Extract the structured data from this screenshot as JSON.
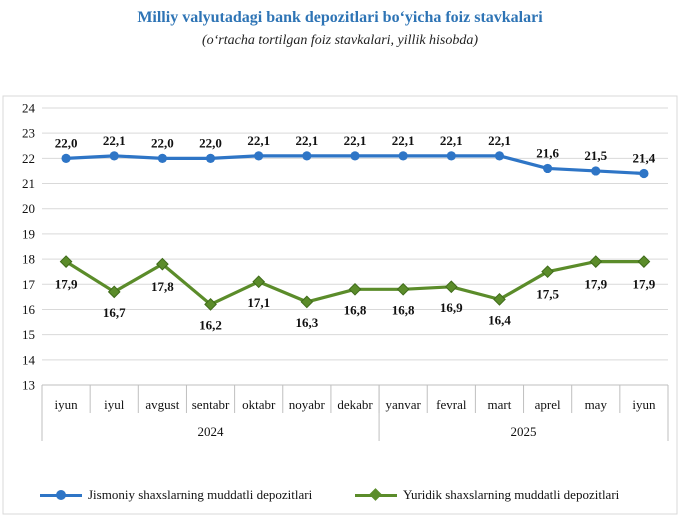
{
  "chart_data": {
    "type": "line",
    "title": "Milliy valyutadagi bank depozitlari bo‘yicha foiz stavkalari",
    "subtitle": "(o‘rtacha tortilgan foiz stavkalari, yillik hisobda)",
    "categories": [
      "iyun",
      "iyul",
      "avgust",
      "sentabr",
      "oktabr",
      "noyabr",
      "dekabr",
      "yanvar",
      "fevral",
      "mart",
      "aprel",
      "may",
      "iyun"
    ],
    "year_groups": [
      {
        "label": "2024",
        "count": 7
      },
      {
        "label": "2025",
        "count": 6
      }
    ],
    "series": [
      {
        "name": "Jismoniy shaxslarning muddatli depozitlari",
        "color": "#2e75c6",
        "marker": "circle",
        "values": [
          22.0,
          22.1,
          22.0,
          22.0,
          22.1,
          22.1,
          22.1,
          22.1,
          22.1,
          22.1,
          21.6,
          21.5,
          21.4
        ],
        "labels": [
          "22,0",
          "22,1",
          "22,0",
          "22,0",
          "22,1",
          "22,1",
          "22,1",
          "22,1",
          "22,1",
          "22,1",
          "21,6",
          "21,5",
          "21,4"
        ]
      },
      {
        "name": "Yuridik shaxslarning muddatli depozitlari",
        "color": "#5b8c2a",
        "marker": "diamond",
        "values": [
          17.9,
          16.7,
          17.8,
          16.2,
          17.1,
          16.3,
          16.8,
          16.8,
          16.9,
          16.4,
          17.5,
          17.9,
          17.9
        ],
        "labels": [
          "17,9",
          "16,7",
          "17,8",
          "16,2",
          "17,1",
          "16,3",
          "16,8",
          "16,8",
          "16,9",
          "16,4",
          "17,5",
          "17,9",
          "17,9"
        ]
      }
    ],
    "ylim": [
      13,
      24
    ],
    "yticks": [
      "13",
      "14",
      "15",
      "16",
      "17",
      "18",
      "19",
      "20",
      "21",
      "22",
      "23",
      "24"
    ],
    "grid": true,
    "legend_position": "bottom"
  }
}
